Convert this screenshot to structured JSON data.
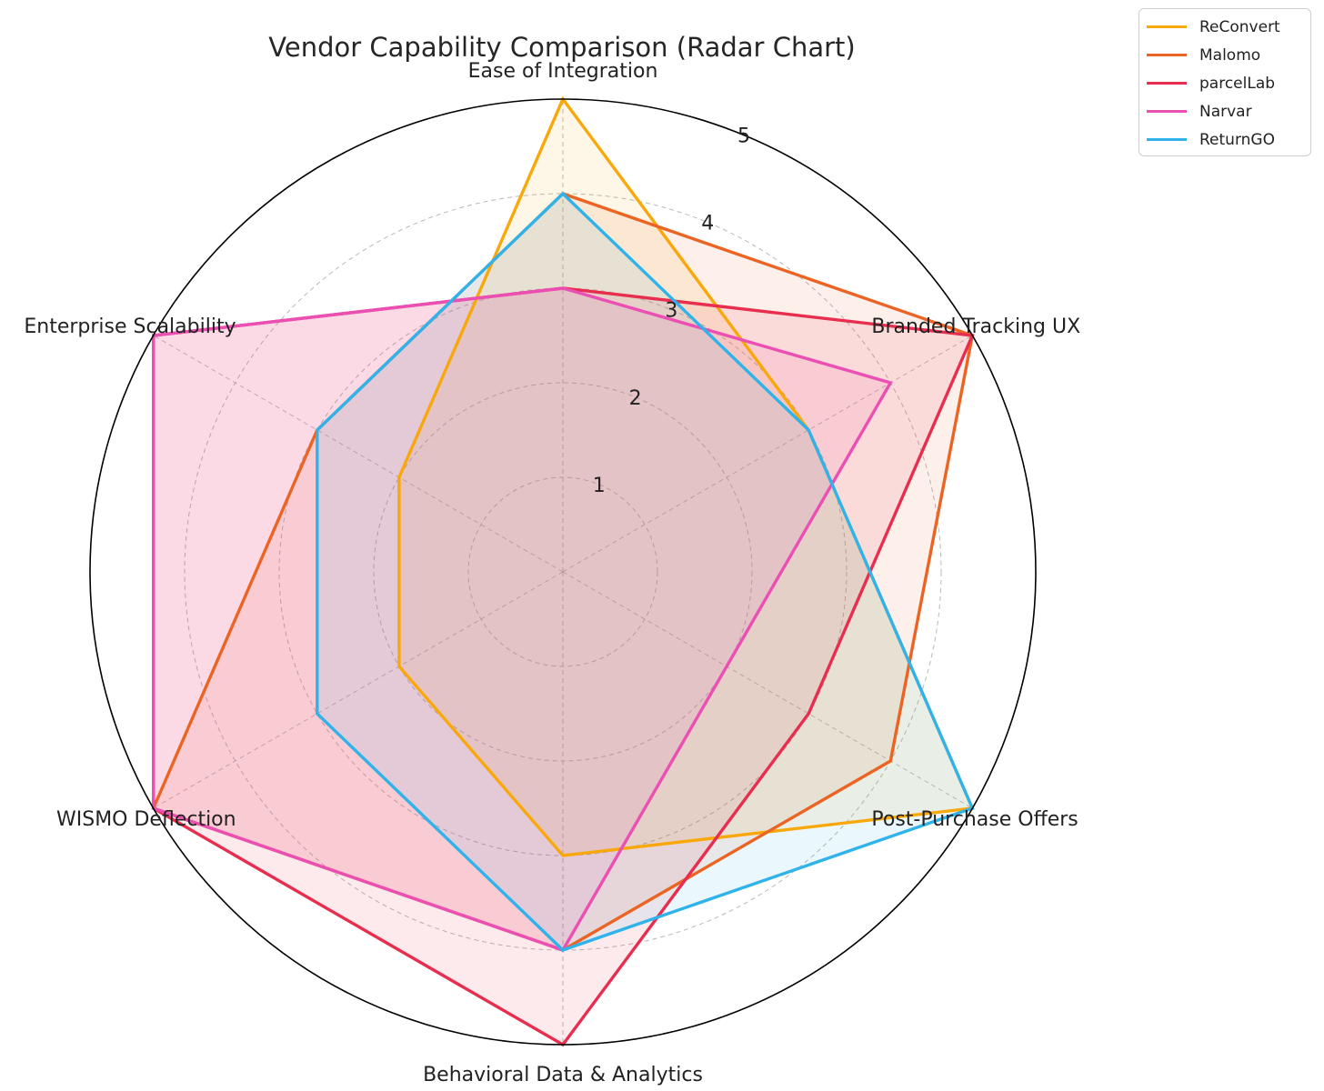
{
  "chart_data": {
    "type": "radar",
    "title": "Vendor Capability Comparison (Radar Chart)",
    "axes": [
      "Ease of Integration",
      "Branded Tracking UX",
      "Post-Purchase Offers",
      "Behavioral Data & Analytics",
      "WISMO Deflection",
      "Enterprise Scalability"
    ],
    "rlim": [
      0,
      5
    ],
    "rticks": [
      1,
      2,
      3,
      4,
      5
    ],
    "grid": true,
    "legend_position": "top-right",
    "series": [
      {
        "name": "ReConvert",
        "color": "#f9a80c",
        "values": [
          5,
          3,
          5,
          3,
          2,
          2
        ]
      },
      {
        "name": "Malomo",
        "color": "#eb6424",
        "values": [
          4,
          5,
          4,
          4,
          5,
          3
        ]
      },
      {
        "name": "parcelLab",
        "color": "#e82e4f",
        "values": [
          3,
          5,
          3,
          5,
          5,
          5
        ]
      },
      {
        "name": "Narvar",
        "color": "#ec4fb3",
        "values": [
          3,
          4,
          2,
          4,
          5,
          5
        ]
      },
      {
        "name": "ReturnGO",
        "color": "#2fb3ea",
        "values": [
          4,
          3,
          5,
          4,
          3,
          3
        ]
      }
    ]
  }
}
